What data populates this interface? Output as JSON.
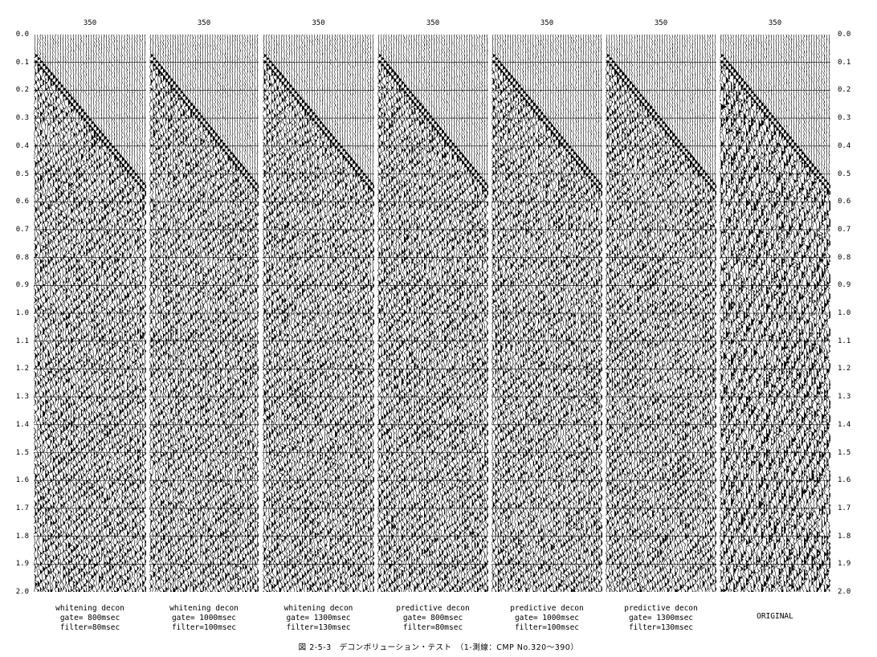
{
  "cdp_top_label": "350",
  "time_axis": [
    "0.0",
    "0.1",
    "0.2",
    "0.3",
    "0.4",
    "0.5",
    "0.6",
    "0.7",
    "0.8",
    "0.9",
    "1.0",
    "1.1",
    "1.2",
    "1.3",
    "1.4",
    "1.5",
    "1.6",
    "1.7",
    "1.8",
    "1.9",
    "2.0"
  ],
  "panels": [
    {
      "id": "p1",
      "cdp": "350",
      "caption": [
        "whitening decon",
        "gate= 800msec",
        "filter=80msec"
      ]
    },
    {
      "id": "p2",
      "cdp": "350",
      "caption": [
        "whitening decon",
        "gate= 1000msec",
        "filter=100msec"
      ]
    },
    {
      "id": "p3",
      "cdp": "350",
      "caption": [
        "whitening decon",
        "gate= 1300msec",
        "filter=130msec"
      ]
    },
    {
      "id": "p4",
      "cdp": "350",
      "caption": [
        "predictive decon",
        "gate= 800msec",
        "filter=80msec"
      ]
    },
    {
      "id": "p5",
      "cdp": "350",
      "caption": [
        "predictive decon",
        "gate= 1000msec",
        "filter=100msec"
      ]
    },
    {
      "id": "p6",
      "cdp": "350",
      "caption": [
        "predictive decon",
        "gate= 1300msec",
        "filter=130msec"
      ]
    },
    {
      "id": "p7",
      "cdp": "350",
      "caption": [
        "ORIGINAL"
      ]
    }
  ],
  "figure_caption": "図 2-5-3　デコンボリューション・テスト　（1-測線：CMP No.320～390）",
  "colors": {
    "ink": "#000000",
    "paper": "#ffffff"
  }
}
